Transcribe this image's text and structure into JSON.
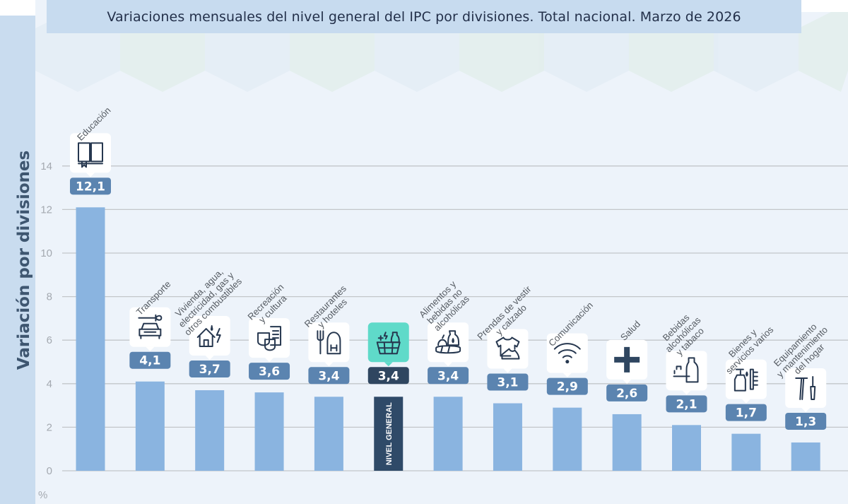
{
  "header": {
    "title": "Variaciones mensuales del nivel general del IPC por divisiones. Total nacional. Marzo de 2026"
  },
  "colors": {
    "bar": "#8ab4e0",
    "bar_highlight": "#2f4a68",
    "value_badge": "#5b84b0",
    "value_badge_highlight": "#2f4660",
    "icon_highlight": "#5fdac9",
    "axis_band": "#c9dcef"
  },
  "chart_data": {
    "type": "bar",
    "title": "Variaciones mensuales del nivel general del IPC por divisiones. Total nacional. Marzo de 2026",
    "xlabel": "",
    "ylabel": "Variación por divisiones",
    "yunit": "%",
    "ylim": [
      0,
      14
    ],
    "yticks": [
      0,
      2,
      4,
      6,
      8,
      10,
      12,
      14
    ],
    "grid": true,
    "highlight_label": "NIVEL GENERAL",
    "categories": [
      {
        "label": "Educación",
        "lines": [
          "Educación"
        ],
        "value": 12.1,
        "display": "12,1",
        "icon": "open-book-icon"
      },
      {
        "label": "Transporte",
        "lines": [
          "Transporte"
        ],
        "value": 4.1,
        "display": "4,1",
        "icon": "car-wrench-icon"
      },
      {
        "label": "Vivienda, agua, electricidad, gas y otros combustibles",
        "lines": [
          "Vivienda, agua,",
          "electricidad, gas y",
          "otros combustibles"
        ],
        "value": 3.7,
        "display": "3,7",
        "icon": "house-utilities-icon"
      },
      {
        "label": "Recreación y cultura",
        "lines": [
          "Recreación",
          "y cultura"
        ],
        "value": 3.6,
        "display": "3,6",
        "icon": "theater-masks-icon"
      },
      {
        "label": "Restaurantes y hoteles",
        "lines": [
          "Restaurantes",
          "y hoteles"
        ],
        "value": 3.4,
        "display": "3,4",
        "icon": "fork-hotel-icon"
      },
      {
        "label": "Nivel general",
        "lines": [],
        "value": 3.4,
        "display": "3,4",
        "icon": "shopping-basket-icon",
        "highlight": true
      },
      {
        "label": "Alimentos y bebidas no alcohólicas",
        "lines": [
          "Alimentos y",
          "bebidas no",
          "alcohólicas"
        ],
        "value": 3.4,
        "display": "3,4",
        "icon": "food-bottle-icon"
      },
      {
        "label": "Prendas de vestir y calzado",
        "lines": [
          "Prendas de vestir",
          "y calzado"
        ],
        "value": 3.1,
        "display": "3,1",
        "icon": "tshirt-shoe-icon"
      },
      {
        "label": "Comunicación",
        "lines": [
          "Comunicación"
        ],
        "value": 2.9,
        "display": "2,9",
        "icon": "wifi-icon"
      },
      {
        "label": "Salud",
        "lines": [
          "Salud"
        ],
        "value": 2.6,
        "display": "2,6",
        "icon": "health-cross-icon"
      },
      {
        "label": "Bebidas alcohólicas y tabaco",
        "lines": [
          "Bebidas",
          "alcohólicas",
          "y tabaco"
        ],
        "value": 2.1,
        "display": "2,1",
        "icon": "bottle-cigarette-icon"
      },
      {
        "label": "Bienes y servicios varios",
        "lines": [
          "Bienes y",
          "servicios varios"
        ],
        "value": 1.7,
        "display": "1,7",
        "icon": "soap-comb-icon"
      },
      {
        "label": "Equipamiento y mantenimiento del hogar",
        "lines": [
          "Equipamiento",
          "y mantenimiento",
          "del hogar"
        ],
        "value": 1.3,
        "display": "1,3",
        "icon": "tools-icon"
      }
    ]
  }
}
